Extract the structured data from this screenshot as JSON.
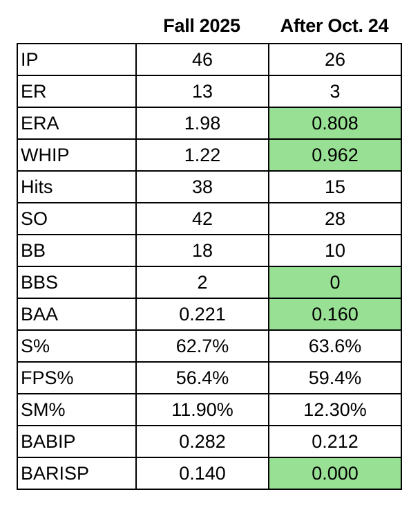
{
  "header": {
    "col1": "Fall 2025",
    "col2": "After Oct. 24"
  },
  "colors": {
    "highlight": "#98e094"
  },
  "rows": [
    {
      "label": "IP",
      "fall": "46",
      "after": "26",
      "highlight": false
    },
    {
      "label": "ER",
      "fall": "13",
      "after": "3",
      "highlight": false
    },
    {
      "label": "ERA",
      "fall": "1.98",
      "after": "0.808",
      "highlight": true
    },
    {
      "label": "WHIP",
      "fall": "1.22",
      "after": "0.962",
      "highlight": true
    },
    {
      "label": "Hits",
      "fall": "38",
      "after": "15",
      "highlight": false
    },
    {
      "label": "SO",
      "fall": "42",
      "after": "28",
      "highlight": false
    },
    {
      "label": "BB",
      "fall": "18",
      "after": "10",
      "highlight": false
    },
    {
      "label": "BBS",
      "fall": "2",
      "after": "0",
      "highlight": true
    },
    {
      "label": "BAA",
      "fall": "0.221",
      "after": "0.160",
      "highlight": true
    },
    {
      "label": "S%",
      "fall": "62.7%",
      "after": "63.6%",
      "highlight": false
    },
    {
      "label": "FPS%",
      "fall": "56.4%",
      "after": "59.4%",
      "highlight": false
    },
    {
      "label": "SM%",
      "fall": "11.90%",
      "after": "12.30%",
      "highlight": false
    },
    {
      "label": "BABIP",
      "fall": "0.282",
      "after": "0.212",
      "highlight": false
    },
    {
      "label": "BARISP",
      "fall": "0.140",
      "after": "0.000",
      "highlight": true
    }
  ]
}
